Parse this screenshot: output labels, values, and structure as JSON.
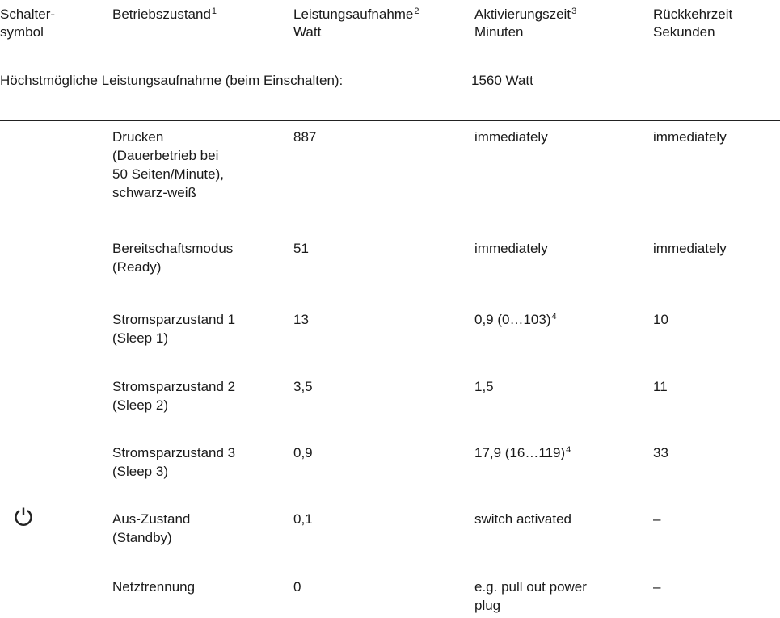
{
  "header": {
    "col1": [
      "Schalter-",
      "symbol"
    ],
    "col2_label": "Betriebszustand",
    "col2_sup": "1",
    "col3_label": "Leistungsaufnahme",
    "col3_sup": "2",
    "col3_unit": "Watt",
    "col4_label": "Aktivierungszeit",
    "col4_sup": "3",
    "col4_unit": "Minuten",
    "col5_label": "Rückkehrzeit",
    "col5_unit": "Sekunden"
  },
  "max_power": {
    "label": "Höchstmögliche Leistungsaufnahme (beim Einschalten):",
    "value": "1560 Watt"
  },
  "rows": [
    {
      "state": [
        "Drucken",
        "(Dauerbetrieb bei",
        "50 Seiten/Minute),",
        "schwarz-weiß"
      ],
      "watt": "887",
      "activation": [
        "immediately"
      ],
      "activation_sup": "",
      "return": "immediately"
    },
    {
      "state": [
        "Bereitschaftsmodus",
        "(Ready)"
      ],
      "watt": "51",
      "activation": [
        "immediately"
      ],
      "activation_sup": "",
      "return": "immediately"
    },
    {
      "state": [
        "Stromsparzustand 1",
        "(Sleep 1)"
      ],
      "watt": "13",
      "activation": [
        "0,9 (0…103)"
      ],
      "activation_sup": "4",
      "return": "10"
    },
    {
      "state": [
        "Stromsparzustand 2",
        "(Sleep 2)"
      ],
      "watt": "3,5",
      "activation": [
        "1,5"
      ],
      "activation_sup": "",
      "return": "11"
    },
    {
      "state": [
        "Stromsparzustand 3",
        "(Sleep 3)"
      ],
      "watt": "0,9",
      "activation": [
        "17,9 (16…119)"
      ],
      "activation_sup": "4",
      "return": "33"
    },
    {
      "state": [
        "Aus-Zustand",
        "(Standby)"
      ],
      "watt": "0,1",
      "activation": [
        "switch activated"
      ],
      "activation_sup": "",
      "return": "–"
    },
    {
      "state": [
        "Netztrennung"
      ],
      "watt": "0",
      "activation": [
        "e.g. pull out power",
        "plug"
      ],
      "activation_sup": "",
      "return": "–"
    }
  ],
  "icons": {
    "switch_symbol": "power-standby-icon"
  }
}
